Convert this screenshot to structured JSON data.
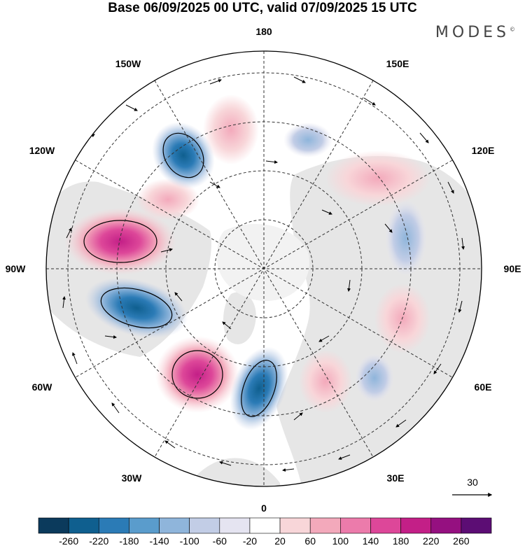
{
  "title": "Base 06/09/2025 00 UTC, valid 07/09/2025 15 UTC",
  "brand": "MODES",
  "brand_mark": "©",
  "longitude_labels": {
    "top": "180",
    "bottom": "0",
    "left": "90W",
    "right": "90E",
    "upper_left_1": "150W",
    "upper_left_2": "120W",
    "lower_left_1": "60W",
    "lower_left_2": "30W",
    "upper_right_1": "150E",
    "upper_right_2": "120E",
    "lower_right_1": "60E",
    "lower_right_2": "30E"
  },
  "vector_reference": "30",
  "colorbar": {
    "ticks": [
      "-260",
      "-220",
      "-180",
      "-140",
      "-100",
      "-60",
      "-20",
      "20",
      "60",
      "100",
      "140",
      "180",
      "220",
      "260"
    ],
    "colors": [
      "#0b3a5c",
      "#0f5f8f",
      "#2b7bb6",
      "#5a9ccc",
      "#8fb5db",
      "#c2cde6",
      "#e5e4f1",
      "#ffffff",
      "#f8d6d9",
      "#f3a9bb",
      "#ec7bab",
      "#dd4799",
      "#c31f87",
      "#951080",
      "#5c0d74"
    ]
  },
  "colors": {
    "land": "#e6e6e6",
    "ocean": "#ffffff",
    "grid": "#333333",
    "positive_core": "#c31f87",
    "negative_core": "#2b7bb6"
  }
}
